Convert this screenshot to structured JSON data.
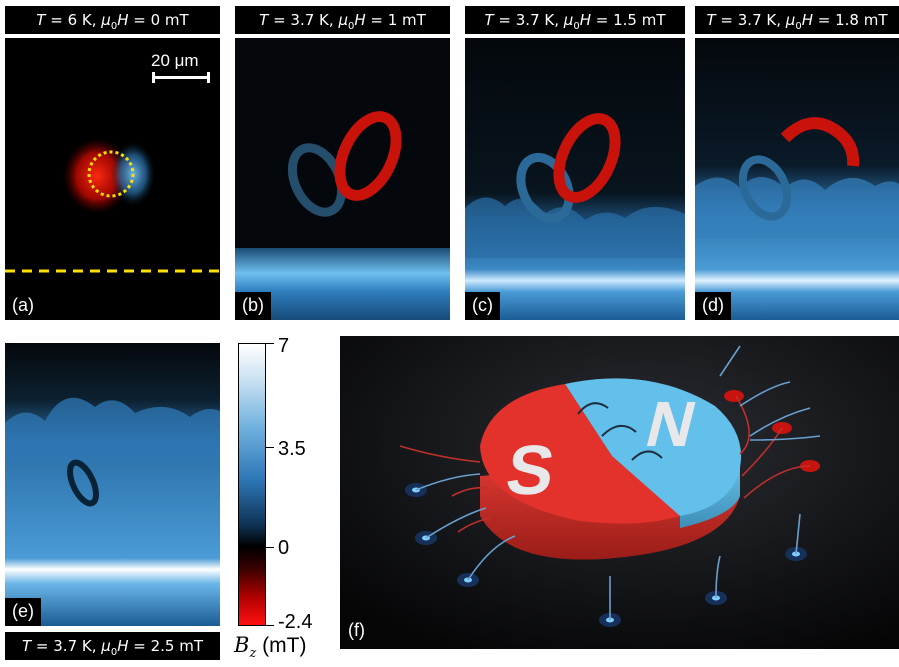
{
  "figure": {
    "panels": [
      {
        "id": "a",
        "label": "(a)",
        "T": "6 K",
        "H": "0 mT"
      },
      {
        "id": "b",
        "label": "(b)",
        "T": "3.7 K",
        "H": "1 mT"
      },
      {
        "id": "c",
        "label": "(c)",
        "T": "3.7 K",
        "H": "1.5 mT"
      },
      {
        "id": "d",
        "label": "(d)",
        "T": "3.7 K",
        "H": "1.8 mT"
      },
      {
        "id": "e",
        "label": "(e)",
        "T": "3.7 K",
        "H": "2.5 mT"
      },
      {
        "id": "f",
        "label": "(f)"
      }
    ],
    "scale_bar": "20 μm",
    "colorbar": {
      "ticks": [
        "7",
        "3.5",
        "0",
        "-2.4"
      ],
      "title_symbol": "B",
      "title_sub": "z",
      "title_unit": " (mT)"
    },
    "magnet": {
      "left_pole": "S",
      "right_pole": "N"
    },
    "colors": {
      "positive": "#3aa3e0",
      "negative": "#e01818",
      "marker": "#ffe000"
    }
  }
}
